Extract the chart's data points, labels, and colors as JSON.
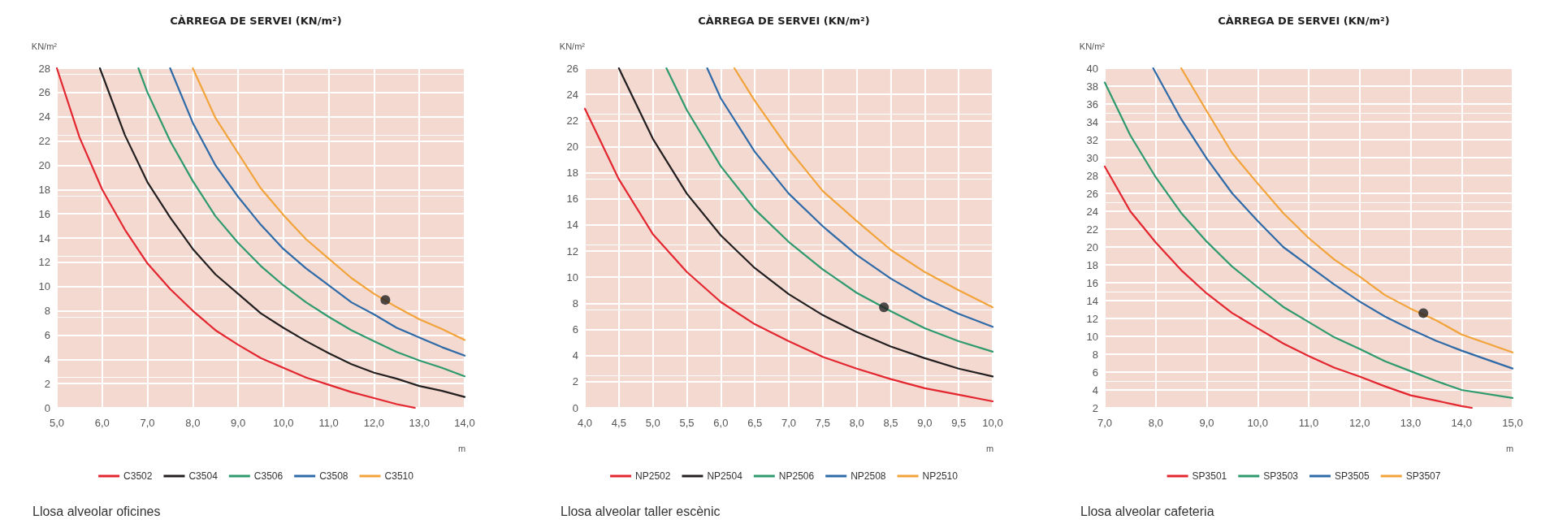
{
  "chart_data": [
    {
      "type": "line",
      "title": "CÀRREGA DE SERVEI (KN/m²)",
      "ylabel": "KN/m²",
      "xlabel": "m",
      "xlim": [
        5,
        14
      ],
      "ylim": [
        0,
        28
      ],
      "xticks": [
        {
          "value": 5,
          "label": "5,0"
        },
        {
          "value": 6,
          "label": "6,0"
        },
        {
          "value": 7,
          "label": "7,0"
        },
        {
          "value": 8,
          "label": "8,0"
        },
        {
          "value": 9,
          "label": "9,0"
        },
        {
          "value": 10,
          "label": "10,0"
        },
        {
          "value": 11,
          "label": "11,0"
        },
        {
          "value": 12,
          "label": "12,0"
        },
        {
          "value": 13,
          "label": "13,0"
        },
        {
          "value": 14,
          "label": "14,0"
        }
      ],
      "yticks": [
        0,
        2,
        4,
        6,
        8,
        10,
        12,
        14,
        16,
        18,
        20,
        22,
        24,
        26,
        28
      ],
      "grid": true,
      "legend": "bottom",
      "marker": "none",
      "line_style": "solid",
      "annotations": [
        "Llosa alveolar oficines"
      ],
      "series": [
        {
          "name": "C3502",
          "color": "#e3262f",
          "x": [
            5,
            5.5,
            6,
            6.5,
            7,
            7.5,
            8,
            8.5,
            9,
            9.5,
            10,
            10.5,
            11,
            11.5,
            12,
            12.5,
            12.9
          ],
          "values": [
            28,
            22.3,
            18,
            14.7,
            11.9,
            9.8,
            8,
            6.4,
            5.2,
            4.1,
            3.3,
            2.5,
            1.9,
            1.3,
            0.8,
            0.3,
            0
          ]
        },
        {
          "name": "C3504",
          "color": "#231f20",
          "x": [
            5.95,
            6.5,
            7,
            7.5,
            8,
            8.5,
            9,
            9.5,
            10,
            10.5,
            11,
            11.5,
            12,
            12.5,
            13,
            13.5,
            14
          ],
          "values": [
            28,
            22.5,
            18.6,
            15.7,
            13.1,
            11,
            9.4,
            7.8,
            6.6,
            5.5,
            4.5,
            3.6,
            2.9,
            2.4,
            1.8,
            1.4,
            0.9
          ]
        },
        {
          "name": "C3506",
          "color": "#2e9a6e",
          "x": [
            6.8,
            7,
            7.5,
            8,
            8.5,
            9,
            9.5,
            10,
            10.5,
            11,
            11.5,
            12,
            12.5,
            13,
            13.5,
            14
          ],
          "values": [
            28,
            26,
            22,
            18.7,
            15.8,
            13.6,
            11.7,
            10.1,
            8.7,
            7.5,
            6.4,
            5.5,
            4.6,
            3.9,
            3.3,
            2.6
          ]
        },
        {
          "name": "C3508",
          "color": "#2f6aa8",
          "x": [
            7.5,
            8,
            8.5,
            9,
            9.5,
            10,
            10.5,
            11,
            11.5,
            12,
            12.5,
            13,
            13.5,
            14
          ],
          "values": [
            28,
            23.5,
            20,
            17.4,
            15.1,
            13.1,
            11.5,
            10.1,
            8.7,
            7.7,
            6.6,
            5.8,
            5,
            4.3
          ]
        },
        {
          "name": "C3510",
          "color": "#f2a33a",
          "x": [
            8,
            8.5,
            9,
            9.5,
            10,
            10.5,
            11,
            11.5,
            12,
            12.5,
            13,
            13.5,
            14
          ],
          "values": [
            28,
            23.9,
            21,
            18.1,
            15.9,
            13.9,
            12.3,
            10.7,
            9.4,
            8.3,
            7.3,
            6.5,
            5.6
          ]
        },
        {
          "type": "scatter",
          "marker": "circle",
          "color": "#222222",
          "x": [
            12.25
          ],
          "values": [
            8.9
          ]
        }
      ]
    },
    {
      "type": "line",
      "title": "CÀRREGA DE SERVEI (KN/m²)",
      "ylabel": "KN/m²",
      "xlabel": "m",
      "xlim": [
        4,
        10
      ],
      "ylim": [
        0,
        26
      ],
      "xticks": [
        {
          "value": 4,
          "label": "4,0"
        },
        {
          "value": 4.5,
          "label": "4,5"
        },
        {
          "value": 5,
          "label": "5,0"
        },
        {
          "value": 5.5,
          "label": "5,5"
        },
        {
          "value": 6,
          "label": "6,0"
        },
        {
          "value": 6.5,
          "label": "6,5"
        },
        {
          "value": 7,
          "label": "7,0"
        },
        {
          "value": 7.5,
          "label": "7,5"
        },
        {
          "value": 8,
          "label": "8,0"
        },
        {
          "value": 8.5,
          "label": "8,5"
        },
        {
          "value": 9,
          "label": "9,0"
        },
        {
          "value": 9.5,
          "label": "9,5"
        },
        {
          "value": 10,
          "label": "10,0"
        }
      ],
      "yticks": [
        0,
        2,
        4,
        6,
        8,
        10,
        12,
        14,
        16,
        18,
        20,
        22,
        24,
        26
      ],
      "grid": true,
      "legend": "bottom",
      "marker": "none",
      "line_style": "solid",
      "annotations": [
        "Llosa alveolar taller escènic"
      ],
      "series": [
        {
          "name": "NP2502",
          "color": "#e3262f",
          "x": [
            4,
            4.5,
            5,
            5.5,
            6,
            6.5,
            7,
            7.5,
            8,
            8.5,
            9,
            9.5,
            10
          ],
          "values": [
            22.9,
            17.5,
            13.3,
            10.4,
            8.1,
            6.4,
            5.1,
            3.9,
            3,
            2.2,
            1.5,
            1,
            0.5
          ]
        },
        {
          "name": "NP2504",
          "color": "#231f20",
          "x": [
            4.5,
            5,
            5.5,
            6,
            6.5,
            7,
            7.5,
            8,
            8.5,
            9,
            9.5,
            10
          ],
          "values": [
            26,
            20.6,
            16.4,
            13.2,
            10.7,
            8.7,
            7.1,
            5.8,
            4.7,
            3.8,
            3,
            2.4
          ]
        },
        {
          "name": "NP2506",
          "color": "#2e9a6e",
          "x": [
            5.2,
            5.5,
            6,
            6.5,
            7,
            7.5,
            8,
            8.5,
            9,
            9.5,
            10
          ],
          "values": [
            26,
            22.8,
            18.5,
            15.2,
            12.7,
            10.6,
            8.8,
            7.4,
            6.1,
            5.1,
            4.3
          ]
        },
        {
          "name": "NP2508",
          "color": "#2f6aa8",
          "x": [
            5.8,
            6,
            6.5,
            7,
            7.5,
            8,
            8.5,
            9,
            9.5,
            10
          ],
          "values": [
            26,
            23.7,
            19.6,
            16.4,
            13.9,
            11.7,
            9.9,
            8.4,
            7.2,
            6.2
          ]
        },
        {
          "name": "NP2510",
          "color": "#f2a33a",
          "x": [
            6.2,
            6.5,
            7,
            7.5,
            8,
            8.5,
            9,
            9.5,
            10
          ],
          "values": [
            26,
            23.5,
            19.8,
            16.6,
            14.3,
            12.1,
            10.4,
            9,
            7.7
          ]
        },
        {
          "type": "scatter",
          "marker": "circle",
          "color": "#222222",
          "x": [
            8.4
          ],
          "values": [
            7.7
          ]
        }
      ]
    },
    {
      "type": "line",
      "title": "CÀRREGA DE SERVEI (KN/m²)",
      "ylabel": "KN/m²",
      "xlabel": "m",
      "xlim": [
        7,
        15
      ],
      "ylim": [
        2,
        40
      ],
      "xticks": [
        {
          "value": 7,
          "label": "7,0"
        },
        {
          "value": 8,
          "label": "8,0"
        },
        {
          "value": 9,
          "label": "9,0"
        },
        {
          "value": 10,
          "label": "10,0"
        },
        {
          "value": 11,
          "label": "11,0"
        },
        {
          "value": 12,
          "label": "12,0"
        },
        {
          "value": 13,
          "label": "13,0"
        },
        {
          "value": 14,
          "label": "14,0"
        },
        {
          "value": 15,
          "label": "15,0"
        }
      ],
      "yticks": [
        2,
        4,
        6,
        8,
        10,
        12,
        14,
        16,
        18,
        20,
        22,
        24,
        26,
        28,
        30,
        32,
        34,
        36,
        38,
        40
      ],
      "grid": true,
      "legend": "bottom",
      "marker": "none",
      "line_style": "solid",
      "annotations": [
        "Llosa alveolar cafeteria"
      ],
      "series": [
        {
          "name": "SP3501",
          "color": "#e3262f",
          "x": [
            7,
            7.5,
            8,
            8.5,
            9,
            9.5,
            10,
            10.5,
            11,
            11.5,
            12,
            12.5,
            13,
            13.5,
            14,
            14.2
          ],
          "values": [
            29,
            24,
            20.5,
            17.4,
            14.8,
            12.6,
            10.9,
            9.2,
            7.8,
            6.5,
            5.5,
            4.4,
            3.4,
            2.8,
            2.2,
            2
          ]
        },
        {
          "name": "SP3503",
          "color": "#2e9a6e",
          "x": [
            7,
            7.5,
            8,
            8.5,
            9,
            9.5,
            10,
            10.5,
            11,
            11.5,
            12,
            12.5,
            13,
            13.5,
            14,
            15
          ],
          "values": [
            38.4,
            32.5,
            27.8,
            23.8,
            20.6,
            17.8,
            15.5,
            13.3,
            11.6,
            9.9,
            8.6,
            7.2,
            6.1,
            5,
            4,
            3.1
          ]
        },
        {
          "name": "SP3505",
          "color": "#2f6aa8",
          "x": [
            7.95,
            8.5,
            9,
            9.5,
            10,
            10.5,
            11,
            11.5,
            12,
            12.5,
            13,
            13.5,
            14,
            14.5,
            15
          ],
          "values": [
            40,
            34.3,
            29.9,
            26,
            22.9,
            20,
            17.9,
            15.8,
            13.9,
            12.2,
            10.8,
            9.5,
            8.4,
            7.4,
            6.4
          ]
        },
        {
          "name": "SP3507",
          "color": "#f2a33a",
          "x": [
            8.5,
            9,
            9.5,
            10,
            10.5,
            11,
            11.5,
            12,
            12.5,
            13,
            13.5,
            14,
            14.5,
            15
          ],
          "values": [
            40,
            35.2,
            30.5,
            27.1,
            23.8,
            21,
            18.6,
            16.7,
            14.6,
            13.1,
            11.8,
            10.2,
            9.2,
            8.2
          ]
        },
        {
          "type": "scatter",
          "marker": "circle",
          "color": "#222222",
          "x": [
            13.25
          ],
          "values": [
            12.6
          ]
        }
      ]
    }
  ]
}
